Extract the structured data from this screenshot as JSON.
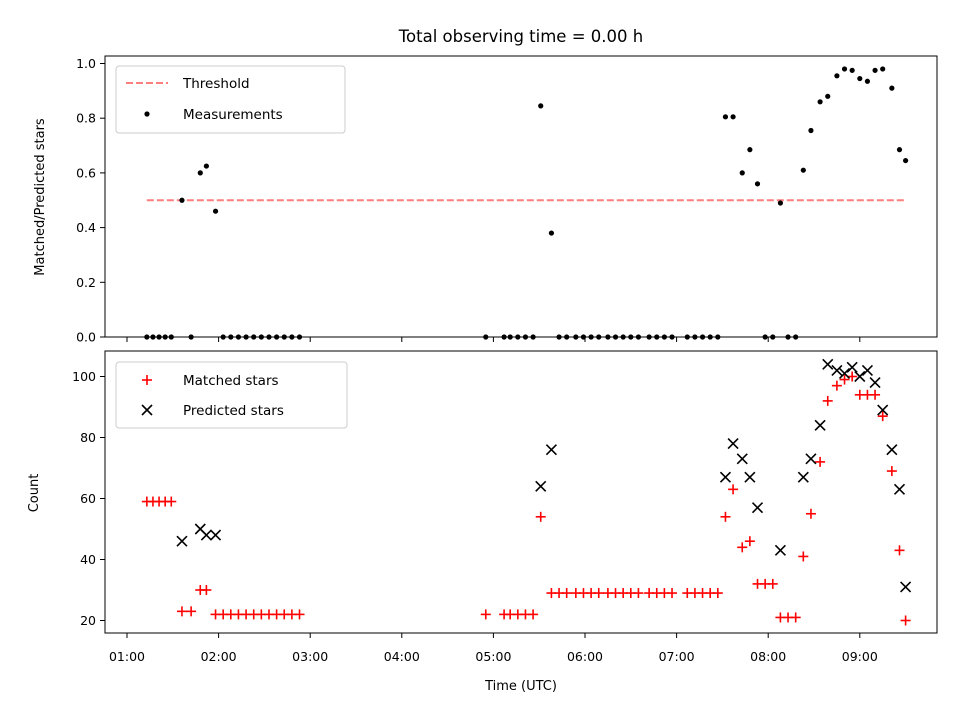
{
  "colors": {
    "threshold": "#ff7f7f",
    "measurement": "#000000",
    "matched": "#ff0000",
    "predicted": "#000000"
  },
  "chart_data": [
    {
      "type": "scatter",
      "title": "Total observing time = 0.00 h",
      "xlabel": "",
      "ylabel": "Matched/Predicted stars",
      "ylim": [
        0,
        1.02
      ],
      "yticks": [
        "0.0",
        "0.2",
        "0.4",
        "0.6",
        "0.8",
        "1.0"
      ],
      "legend": "top-left",
      "threshold": {
        "name": "Threshold",
        "y": 0.5,
        "x": [
          "01:13",
          "09:30"
        ]
      },
      "series": [
        {
          "name": "Measurements",
          "marker": "dot",
          "x": [
            "01:13",
            "01:17",
            "01:21",
            "01:25",
            "01:29",
            "01:36",
            "01:42",
            "01:48",
            "01:52",
            "01:58",
            "02:03",
            "02:08",
            "02:13",
            "02:18",
            "02:23",
            "02:28",
            "02:33",
            "02:38",
            "02:43",
            "02:48",
            "02:53",
            "04:55",
            "05:07",
            "05:11",
            "05:16",
            "05:21",
            "05:26",
            "05:31",
            "05:38",
            "05:43",
            "05:48",
            "05:54",
            "05:59",
            "06:04",
            "06:09",
            "06:15",
            "06:20",
            "06:25",
            "06:30",
            "06:35",
            "06:42",
            "06:47",
            "06:52",
            "06:57",
            "07:07",
            "07:12",
            "07:17",
            "07:22",
            "07:27",
            "07:32",
            "07:37",
            "07:43",
            "07:48",
            "07:53",
            "07:58",
            "08:03",
            "08:08",
            "08:13",
            "08:18",
            "08:23",
            "08:28",
            "08:34",
            "08:39",
            "08:45",
            "08:50",
            "08:55",
            "09:00",
            "09:05",
            "09:10",
            "09:15",
            "09:21",
            "09:26",
            "09:30"
          ],
          "y": [
            0,
            0,
            0,
            0,
            0,
            0.5,
            0,
            0.6,
            0.625,
            0.46,
            0,
            0,
            0,
            0,
            0,
            0,
            0,
            0,
            0,
            0,
            0,
            0,
            0,
            0,
            0,
            0,
            0,
            0.845,
            0.38,
            0,
            0,
            0,
            0,
            0,
            0,
            0,
            0,
            0,
            0,
            0,
            0,
            0,
            0,
            0,
            0,
            0,
            0,
            0,
            0,
            0.805,
            0.805,
            0.6,
            0.685,
            0.56,
            0,
            0,
            0.49,
            0,
            0,
            0.61,
            0.755,
            0.86,
            0.88,
            0.955,
            0.98,
            0.975,
            0.945,
            0.935,
            0.975,
            0.98,
            0.91,
            0.685,
            0.645
          ]
        }
      ]
    },
    {
      "type": "scatter",
      "title": "",
      "xlabel": "Time (UTC)",
      "ylabel": "Count",
      "ylim": [
        16,
        108
      ],
      "yticks": [
        "20",
        "40",
        "60",
        "80",
        "100"
      ],
      "xticks": [
        "01:00",
        "02:00",
        "03:00",
        "04:00",
        "05:00",
        "06:00",
        "07:00",
        "08:00",
        "09:00"
      ],
      "legend": "top-left",
      "series": [
        {
          "name": "Matched stars",
          "marker": "plus",
          "x": [
            "01:13",
            "01:17",
            "01:21",
            "01:25",
            "01:29",
            "01:36",
            "01:42",
            "01:48",
            "01:52",
            "01:58",
            "02:03",
            "02:08",
            "02:13",
            "02:18",
            "02:23",
            "02:28",
            "02:33",
            "02:38",
            "02:43",
            "02:48",
            "02:53",
            "04:55",
            "05:07",
            "05:11",
            "05:16",
            "05:21",
            "05:26",
            "05:31",
            "05:38",
            "05:43",
            "05:48",
            "05:54",
            "05:59",
            "06:04",
            "06:09",
            "06:15",
            "06:20",
            "06:25",
            "06:30",
            "06:35",
            "06:42",
            "06:47",
            "06:52",
            "06:57",
            "07:07",
            "07:12",
            "07:17",
            "07:22",
            "07:27",
            "07:32",
            "07:37",
            "07:43",
            "07:48",
            "07:53",
            "07:58",
            "08:03",
            "08:08",
            "08:13",
            "08:18",
            "08:23",
            "08:28",
            "08:34",
            "08:39",
            "08:45",
            "08:50",
            "08:55",
            "09:00",
            "09:05",
            "09:10",
            "09:15",
            "09:21",
            "09:26",
            "09:30"
          ],
          "y": [
            59,
            59,
            59,
            59,
            59,
            23,
            23,
            30,
            30,
            22,
            22,
            22,
            22,
            22,
            22,
            22,
            22,
            22,
            22,
            22,
            22,
            22,
            22,
            22,
            22,
            22,
            22,
            54,
            29,
            29,
            29,
            29,
            29,
            29,
            29,
            29,
            29,
            29,
            29,
            29,
            29,
            29,
            29,
            29,
            29,
            29,
            29,
            29,
            29,
            54,
            63,
            44,
            46,
            32,
            32,
            32,
            21,
            21,
            21,
            41,
            55,
            72,
            92,
            97,
            99,
            100,
            94,
            94,
            94,
            87,
            69,
            43,
            20
          ]
        },
        {
          "name": "Predicted stars",
          "marker": "x",
          "x": [
            "01:36",
            "01:48",
            "01:52",
            "01:58",
            "05:31",
            "05:38",
            "07:32",
            "07:37",
            "07:43",
            "07:48",
            "07:53",
            "08:08",
            "08:23",
            "08:28",
            "08:34",
            "08:39",
            "08:45",
            "08:50",
            "08:55",
            "09:00",
            "09:05",
            "09:10",
            "09:15",
            "09:21",
            "09:26",
            "09:30"
          ],
          "y": [
            46,
            50,
            48,
            48,
            64,
            76,
            67,
            78,
            73,
            67,
            57,
            43,
            67,
            73,
            84,
            104,
            102,
            101,
            103,
            100,
            102,
            98,
            89,
            76,
            63,
            31
          ]
        }
      ]
    }
  ]
}
